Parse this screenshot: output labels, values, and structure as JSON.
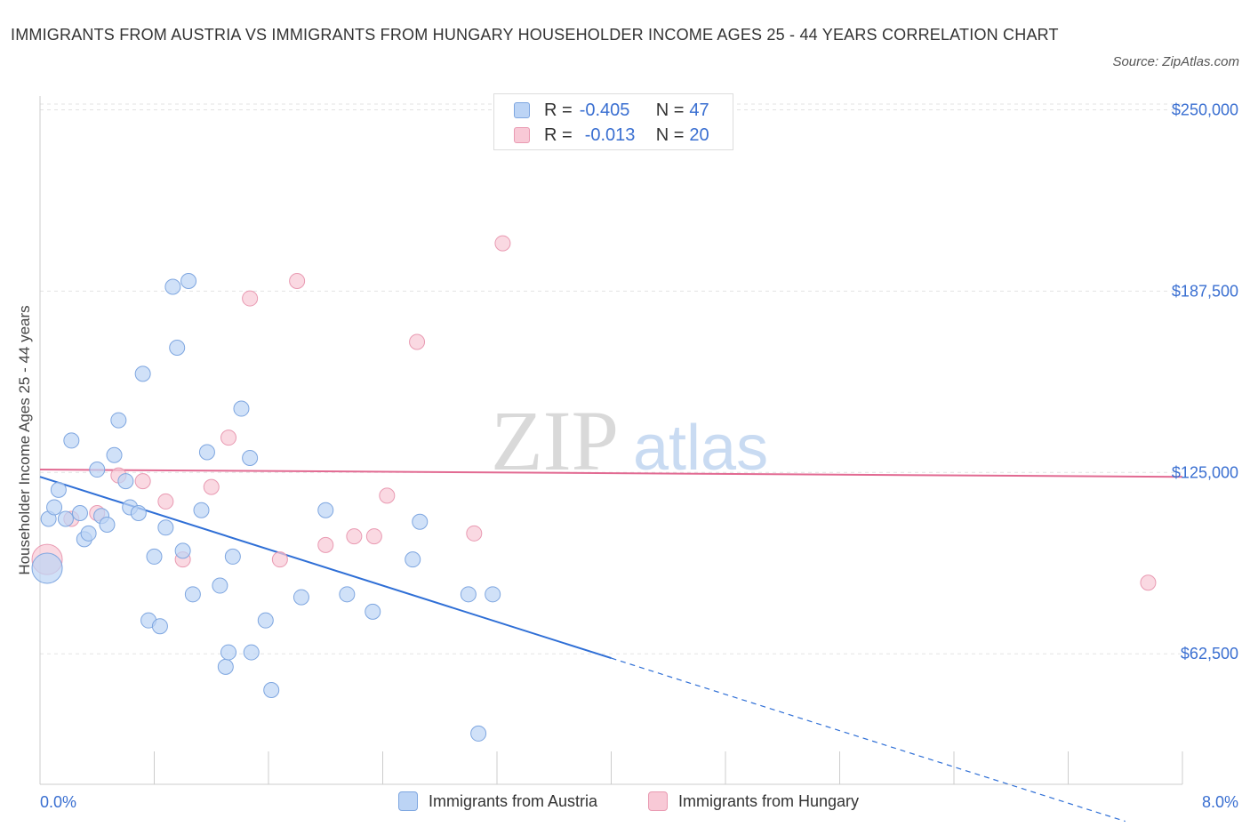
{
  "title": "IMMIGRANTS FROM AUSTRIA VS IMMIGRANTS FROM HUNGARY HOUSEHOLDER INCOME AGES 25 - 44 YEARS CORRELATION CHART",
  "source": "Source: ZipAtlas.com",
  "watermark": {
    "zip": "ZIP",
    "atlas": "atlas"
  },
  "legend": {
    "rows": [
      {
        "r_label": "R =",
        "r_value": "-0.405",
        "n_label": "N =",
        "n_value": "47"
      },
      {
        "r_label": "R =",
        "r_value": "-0.013",
        "n_label": "N =",
        "n_value": "20"
      }
    ]
  },
  "colors": {
    "austria_fill": "#bcd4f5",
    "austria_stroke": "#7ea6e0",
    "austria_line": "#2f6fd6",
    "hungary_fill": "#f8c9d6",
    "hungary_stroke": "#e99ab2",
    "hungary_line": "#e26a92",
    "tick_label": "#3a6fd1",
    "grid": "#e3e3e3"
  },
  "chart_data": {
    "type": "scatter",
    "title": "IMMIGRANTS FROM AUSTRIA VS IMMIGRANTS FROM HUNGARY HOUSEHOLDER INCOME AGES 25 - 44 YEARS CORRELATION CHART",
    "xlabel": "",
    "ylabel": "Householder Income Ages 25 - 44 years",
    "xlim": [
      0,
      8
    ],
    "ylim": [
      17500,
      252000
    ],
    "x_tick_labels": [
      "0.0%",
      "8.0%"
    ],
    "y_ticks": [
      62500,
      125000,
      187500,
      250000
    ],
    "y_tick_labels": [
      "$62,500",
      "$125,000",
      "$187,500",
      "$250,000"
    ],
    "grid": true,
    "legend_position": "bottom",
    "series": [
      {
        "name": "Immigrants from Austria",
        "r": -0.405,
        "n": 47,
        "trend": {
          "x0": 0,
          "y0": 123500,
          "x1": 4.0,
          "y1": 61000,
          "dashed_to_x": 7.6
        },
        "points": [
          [
            0.05,
            92000,
            2
          ],
          [
            0.06,
            109000,
            1
          ],
          [
            0.1,
            113000,
            1
          ],
          [
            0.13,
            119000,
            1
          ],
          [
            0.18,
            109000,
            1
          ],
          [
            0.22,
            136000,
            1
          ],
          [
            0.28,
            111000,
            1
          ],
          [
            0.31,
            102000,
            1
          ],
          [
            0.34,
            104000,
            1
          ],
          [
            0.4,
            126000,
            1
          ],
          [
            0.43,
            110000,
            1
          ],
          [
            0.47,
            107000,
            1
          ],
          [
            0.52,
            131000,
            1
          ],
          [
            0.55,
            143000,
            1
          ],
          [
            0.6,
            122000,
            1
          ],
          [
            0.63,
            113000,
            1
          ],
          [
            0.69,
            111000,
            1
          ],
          [
            0.72,
            159000,
            1
          ],
          [
            0.76,
            74000,
            1
          ],
          [
            0.8,
            96000,
            1
          ],
          [
            0.84,
            72000,
            1
          ],
          [
            0.88,
            106000,
            1
          ],
          [
            0.93,
            189000,
            1
          ],
          [
            0.96,
            168000,
            1
          ],
          [
            1.0,
            98000,
            1
          ],
          [
            1.04,
            191000,
            1
          ],
          [
            1.07,
            83000,
            1
          ],
          [
            1.13,
            112000,
            1
          ],
          [
            1.17,
            132000,
            1
          ],
          [
            1.26,
            86000,
            1
          ],
          [
            1.3,
            58000,
            1
          ],
          [
            1.32,
            63000,
            1
          ],
          [
            1.35,
            96000,
            1
          ],
          [
            1.41,
            147000,
            1
          ],
          [
            1.47,
            130000,
            1
          ],
          [
            1.48,
            63000,
            1
          ],
          [
            1.58,
            74000,
            1
          ],
          [
            1.62,
            50000,
            1
          ],
          [
            1.83,
            82000,
            1
          ],
          [
            2.0,
            112000,
            1
          ],
          [
            2.15,
            83000,
            1
          ],
          [
            2.33,
            77000,
            1
          ],
          [
            2.61,
            95000,
            1
          ],
          [
            2.66,
            108000,
            1
          ],
          [
            3.0,
            83000,
            1
          ],
          [
            3.07,
            35000,
            1
          ],
          [
            3.17,
            83000,
            1
          ]
        ]
      },
      {
        "name": "Immigrants from Hungary",
        "r": -0.013,
        "n": 20,
        "trend": {
          "x0": 0,
          "y0": 126000,
          "x1": 8.0,
          "y1": 123500
        },
        "points": [
          [
            0.05,
            95000,
            2
          ],
          [
            0.22,
            109000,
            1
          ],
          [
            0.4,
            111000,
            1
          ],
          [
            0.55,
            124000,
            1
          ],
          [
            0.72,
            122000,
            1
          ],
          [
            0.88,
            115000,
            1
          ],
          [
            1.0,
            95000,
            1
          ],
          [
            1.2,
            120000,
            1
          ],
          [
            1.32,
            137000,
            1
          ],
          [
            1.47,
            185000,
            1
          ],
          [
            1.68,
            95000,
            1
          ],
          [
            1.8,
            191000,
            1
          ],
          [
            2.0,
            100000,
            1
          ],
          [
            2.2,
            103000,
            1
          ],
          [
            2.34,
            103000,
            1
          ],
          [
            2.43,
            117000,
            1
          ],
          [
            2.64,
            170000,
            1
          ],
          [
            3.04,
            104000,
            1
          ],
          [
            3.24,
            204000,
            1
          ],
          [
            7.76,
            87000,
            1
          ]
        ]
      }
    ]
  }
}
